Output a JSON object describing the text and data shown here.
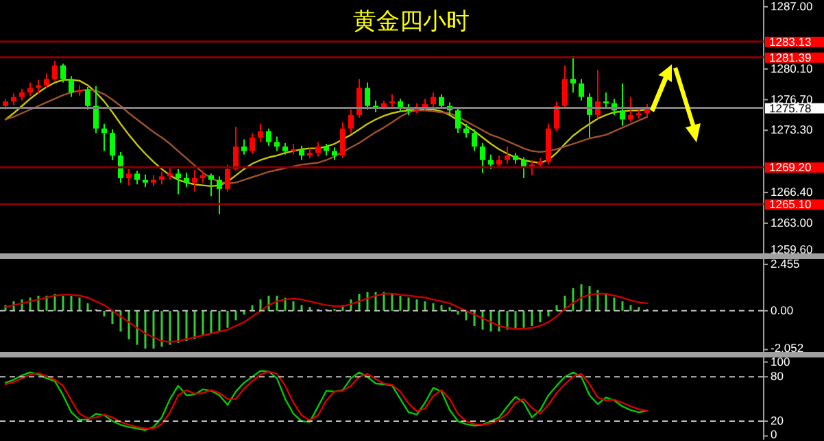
{
  "chart_data": [
    {
      "type": "candlestick",
      "title": "黄金四小时",
      "categories": [
        null,
        null,
        null,
        null,
        null,
        null,
        null,
        null,
        null,
        null,
        null,
        null,
        null,
        null,
        null,
        null,
        null,
        null,
        null,
        null,
        null,
        null,
        null,
        null,
        null,
        null,
        null,
        null,
        null,
        null,
        null,
        null,
        null,
        null,
        null,
        null,
        null,
        null,
        null,
        null,
        null,
        null,
        null,
        null,
        null,
        null,
        null,
        null,
        null,
        null,
        null,
        null,
        null,
        null,
        null,
        null,
        null,
        null,
        null,
        null,
        null,
        null,
        null,
        null,
        null,
        null,
        null,
        null,
        null,
        null,
        null,
        null,
        null,
        null,
        null,
        null,
        null,
        null,
        null
      ],
      "tick_labels": "y",
      "ylim": [
        1259.5,
        1287.75
      ],
      "yticks": [
        {
          "value": 1287,
          "label": "1287.00"
        },
        {
          "value": 1280.1,
          "label": "1280.10"
        },
        {
          "value": 1276.7,
          "label": "1276.70"
        },
        {
          "value": 1273.3,
          "label": "1273.30"
        },
        {
          "value": 1266.4,
          "label": "1266.40"
        },
        {
          "value": 1263,
          "label": "1263.00"
        },
        {
          "value": 1259.6,
          "label": "1259.60"
        }
      ],
      "ref_lines": [
        {
          "axis": "y",
          "value": 1283.13,
          "label": "1283.13",
          "color": "#8b0000"
        },
        {
          "axis": "y",
          "value": 1281.39,
          "label": "1281.39",
          "color": "#8b0000"
        },
        {
          "axis": "y",
          "value": 1275.78,
          "label": "1275.78",
          "color": "#808080"
        },
        {
          "axis": "y",
          "value": 1269.2,
          "label": "1269.20",
          "color": "#8b0000"
        },
        {
          "axis": "y",
          "value": 1265.1,
          "label": "1265.10",
          "color": "#8b0000"
        }
      ],
      "series": [
        {
          "type": "line",
          "color": "#c8c800",
          "values": [
            1274.5,
            1275.2,
            1276.0,
            1276.8,
            1277.5,
            1278.1,
            1278.6,
            1278.9,
            1278.9,
            1278.8,
            1278.3,
            1277.5,
            1276.5,
            1275.3,
            1274.0,
            1272.8,
            1271.7,
            1270.7,
            1269.8,
            1269.0,
            1268.3,
            1267.8,
            1267.5,
            1267.3,
            1267.2,
            1267.1,
            1267.2,
            1267.6,
            1268.3,
            1269.0,
            1269.6,
            1270.0,
            1270.3,
            1270.5,
            1270.8,
            1271.0,
            1271.2,
            1271.3,
            1271.3,
            1271.5,
            1271.8,
            1272.3,
            1272.8,
            1273.4,
            1274.0,
            1274.5,
            1274.9,
            1275.2,
            1275.4,
            1275.5,
            1275.6,
            1275.6,
            1275.6,
            1275.4,
            1275.0,
            1274.4,
            1273.8,
            1273.2,
            1272.5,
            1271.8,
            1271.2,
            1270.7,
            1270.3,
            1270.0,
            1269.8,
            1269.7,
            1270.0,
            1270.8,
            1271.8,
            1272.7,
            1273.4,
            1274.0,
            1274.6,
            1275.0,
            1275.3,
            1275.4,
            1275.5,
            1275.5,
            1275.6
          ]
        },
        {
          "type": "line",
          "color": "#a0522d",
          "values": [
            1274.5,
            1274.8,
            1275.2,
            1275.6,
            1276.0,
            1276.4,
            1276.8,
            1277.2,
            1277.5,
            1277.7,
            1277.8,
            1277.7,
            1277.3,
            1276.7,
            1276.0,
            1275.2,
            1274.5,
            1273.8,
            1273.1,
            1272.5,
            1271.8,
            1271.0,
            1270.2,
            1269.4,
            1268.6,
            1268.0,
            1267.6,
            1267.4,
            1267.5,
            1267.8,
            1268.1,
            1268.4,
            1268.7,
            1268.9,
            1269.1,
            1269.3,
            1269.5,
            1269.6,
            1269.7,
            1270.0,
            1270.4,
            1270.9,
            1271.4,
            1271.9,
            1272.5,
            1273.1,
            1273.6,
            1274.2,
            1274.8,
            1275.3,
            1275.5,
            1275.5,
            1275.4,
            1275.3,
            1275.2,
            1274.8,
            1274.3,
            1273.8,
            1273.3,
            1272.8,
            1272.5,
            1272.1,
            1271.7,
            1271.3,
            1271.0,
            1270.9,
            1271.0,
            1271.2,
            1271.5,
            1271.8,
            1272.1,
            1272.4,
            1272.6,
            1272.8,
            1273.2,
            1273.6,
            1274.0,
            1274.4,
            1274.8
          ]
        },
        {
          "colors": [
            "#ff0000",
            "#ff0000",
            "#ff0000",
            "#ff0000",
            "#ff0000",
            "#ff0000",
            "#ff0000",
            "#00ff00",
            "#00ff00",
            "#ff0000",
            "#00ff00",
            "#00ff00",
            "#00ff00",
            "#00ff00",
            "#00ff00",
            "#ff0000",
            "#00ff00",
            "#00ff00",
            "#ff0000",
            "#ff0000",
            "#ff0000",
            "#00ff00",
            "#00ff00",
            "#ff0000",
            "#ff0000",
            "#00ff00",
            "#00ff00",
            "#ff0000",
            "#ff0000",
            "#00ff00",
            "#ff0000",
            "#ff0000",
            "#00ff00",
            "#00ff00",
            "#00ff00",
            "#ff0000",
            "#00ff00",
            "#ff0000",
            "#ff0000",
            "#00ff00",
            "#00ff00",
            "#ff0000",
            "#ff0000",
            "#ff0000",
            "#00ff00",
            "#00ff00",
            "#ff0000",
            "#ff0000",
            "#00ff00",
            "#00ff00",
            "#ff0000",
            "#ff0000",
            "#ff0000",
            "#00ff00",
            "#00ff00",
            "#00ff00",
            "#00ff00",
            "#00ff00",
            "#00ff00",
            "#00ff00",
            "#ff0000",
            "#ff0000",
            "#00ff00",
            "#00ff00",
            "#ff0000",
            "#ff0000",
            "#ff0000",
            "#ff0000",
            "#ff0000",
            "#00ff00",
            "#00ff00",
            "#00ff00",
            "#ff0000",
            "#00ff00",
            "#00ff00",
            "#00ff00",
            "#ff0000",
            "#ff0000",
            "#ff0000"
          ],
          "ohlc": [
            [
              1276.0,
              1276.8,
              1275.6,
              1276.5
            ],
            [
              1276.5,
              1277.4,
              1276.1,
              1277.0
            ],
            [
              1277.0,
              1277.9,
              1276.6,
              1277.5
            ],
            [
              1277.5,
              1278.6,
              1277.1,
              1278.0
            ],
            [
              1278.0,
              1278.9,
              1277.4,
              1278.3
            ],
            [
              1278.3,
              1279.6,
              1278.0,
              1279.0
            ],
            [
              1279.0,
              1281.0,
              1278.8,
              1280.5
            ],
            [
              1280.5,
              1280.7,
              1278.6,
              1279.0
            ],
            [
              1279.0,
              1279.3,
              1277.0,
              1277.5
            ],
            [
              1277.5,
              1278.3,
              1277.1,
              1277.8
            ],
            [
              1277.8,
              1278.1,
              1275.6,
              1276.0
            ],
            [
              1276.0,
              1278.2,
              1273.0,
              1273.5
            ],
            [
              1273.5,
              1274.0,
              1271.0,
              1273.0
            ],
            [
              1273.0,
              1273.4,
              1270.0,
              1270.5
            ],
            [
              1270.5,
              1270.9,
              1267.5,
              1268.0
            ],
            [
              1268.0,
              1269.0,
              1267.2,
              1268.5
            ],
            [
              1268.5,
              1268.8,
              1267.3,
              1267.8
            ],
            [
              1267.8,
              1268.4,
              1267.0,
              1267.5
            ],
            [
              1267.5,
              1268.3,
              1267.1,
              1267.8
            ],
            [
              1267.8,
              1268.7,
              1267.3,
              1268.2
            ],
            [
              1268.2,
              1269.1,
              1267.8,
              1268.5
            ],
            [
              1268.5,
              1269.0,
              1266.2,
              1268.0
            ],
            [
              1268.0,
              1268.6,
              1267.0,
              1267.5
            ],
            [
              1267.5,
              1268.9,
              1266.5,
              1268.0
            ],
            [
              1268.0,
              1268.8,
              1267.5,
              1268.3
            ],
            [
              1268.3,
              1268.5,
              1266.0,
              1267.8
            ],
            [
              1267.8,
              1268.2,
              1264.0,
              1266.8
            ],
            [
              1266.8,
              1269.5,
              1266.5,
              1269.0
            ],
            [
              1269.0,
              1273.7,
              1268.8,
              1271.5
            ],
            [
              1271.5,
              1272.3,
              1270.6,
              1271.0
            ],
            [
              1271.0,
              1273.0,
              1270.7,
              1272.5
            ],
            [
              1272.5,
              1274.0,
              1272.0,
              1273.2
            ],
            [
              1273.2,
              1273.5,
              1271.6,
              1272.0
            ],
            [
              1272.0,
              1272.6,
              1271.0,
              1271.5
            ],
            [
              1271.5,
              1271.9,
              1270.6,
              1271.0
            ],
            [
              1271.0,
              1271.8,
              1270.6,
              1271.2
            ],
            [
              1271.2,
              1271.6,
              1270.0,
              1270.5
            ],
            [
              1270.5,
              1271.3,
              1270.2,
              1270.8
            ],
            [
              1270.8,
              1272.0,
              1270.4,
              1271.5
            ],
            [
              1271.5,
              1271.8,
              1270.5,
              1271.0
            ],
            [
              1271.0,
              1271.4,
              1270.0,
              1270.5
            ],
            [
              1270.5,
              1274.2,
              1270.2,
              1273.5
            ],
            [
              1273.5,
              1275.6,
              1273.0,
              1275.0
            ],
            [
              1275.0,
              1279.0,
              1274.7,
              1278.0
            ],
            [
              1278.0,
              1278.6,
              1275.6,
              1276.0
            ],
            [
              1276.0,
              1276.6,
              1275.3,
              1275.9
            ],
            [
              1275.9,
              1276.6,
              1275.6,
              1276.3
            ],
            [
              1276.3,
              1277.3,
              1275.9,
              1276.5
            ],
            [
              1276.5,
              1276.8,
              1275.4,
              1275.8
            ],
            [
              1275.8,
              1276.2,
              1275.0,
              1275.5
            ],
            [
              1275.5,
              1276.3,
              1275.2,
              1275.8
            ],
            [
              1275.8,
              1276.8,
              1275.5,
              1276.2
            ],
            [
              1276.2,
              1277.5,
              1275.8,
              1277.0
            ],
            [
              1277.0,
              1277.3,
              1275.7,
              1276.0
            ],
            [
              1276.0,
              1276.4,
              1275.0,
              1275.5
            ],
            [
              1275.5,
              1275.8,
              1273.0,
              1273.5
            ],
            [
              1273.5,
              1274.0,
              1272.5,
              1273.0
            ],
            [
              1273.0,
              1273.4,
              1271.0,
              1271.5
            ],
            [
              1271.5,
              1271.9,
              1268.6,
              1270.0
            ],
            [
              1270.0,
              1270.6,
              1269.0,
              1269.5
            ],
            [
              1269.5,
              1270.5,
              1269.2,
              1270.0
            ],
            [
              1270.0,
              1271.5,
              1269.6,
              1270.5
            ],
            [
              1270.5,
              1270.8,
              1269.6,
              1270.0
            ],
            [
              1270.0,
              1270.3,
              1268.0,
              1269.2
            ],
            [
              1269.2,
              1270.0,
              1268.3,
              1269.5
            ],
            [
              1269.5,
              1270.2,
              1269.2,
              1269.8
            ],
            [
              1269.8,
              1274.0,
              1269.5,
              1273.5
            ],
            [
              1273.5,
              1276.5,
              1273.2,
              1276.0
            ],
            [
              1276.0,
              1280.5,
              1275.8,
              1279.0
            ],
            [
              1279.0,
              1281.5,
              1277.5,
              1278.5
            ],
            [
              1278.5,
              1279.0,
              1276.6,
              1277.0
            ],
            [
              1277.0,
              1277.4,
              1272.5,
              1275.0
            ],
            [
              1275.0,
              1280.0,
              1274.6,
              1276.5
            ],
            [
              1276.5,
              1277.5,
              1275.8,
              1276.3
            ],
            [
              1276.3,
              1276.8,
              1275.0,
              1275.5
            ],
            [
              1275.5,
              1278.5,
              1273.8,
              1274.5
            ],
            [
              1274.5,
              1277.0,
              1274.2,
              1275.0
            ],
            [
              1275.0,
              1275.8,
              1274.6,
              1275.2
            ],
            [
              1275.2,
              1276.2,
              1274.9,
              1275.7
            ]
          ]
        }
      ]
    },
    {
      "type": "bar",
      "categories": [
        null,
        null,
        null,
        null,
        null,
        null,
        null,
        null,
        null,
        null,
        null,
        null,
        null,
        null,
        null,
        null,
        null,
        null,
        null,
        null,
        null,
        null,
        null,
        null,
        null,
        null,
        null,
        null,
        null,
        null,
        null,
        null,
        null,
        null,
        null,
        null,
        null,
        null,
        null,
        null,
        null,
        null,
        null,
        null,
        null,
        null,
        null,
        null,
        null,
        null,
        null,
        null,
        null,
        null,
        null,
        null,
        null,
        null,
        null,
        null,
        null,
        null,
        null,
        null,
        null,
        null,
        null,
        null,
        null,
        null,
        null,
        null,
        null,
        null,
        null,
        null,
        null,
        null,
        null
      ],
      "tick_labels": "y",
      "ylim": [
        -2.25,
        2.82
      ],
      "yticks": [
        {
          "value": 2.455,
          "label": "2.455"
        },
        {
          "value": 0,
          "label": "0.00"
        },
        {
          "value": -2.052,
          "label": "-2.052"
        }
      ],
      "ref_lines": [
        {
          "axis": "y",
          "value": 0,
          "color": "#c0c0c0",
          "line_style": "dashed"
        }
      ],
      "series": [
        {
          "color": "#32cd32",
          "values": [
            0.3,
            0.5,
            0.6,
            0.7,
            0.8,
            0.8,
            0.9,
            0.8,
            0.8,
            0.7,
            0.4,
            0.1,
            -0.3,
            -0.7,
            -1.1,
            -1.5,
            -1.8,
            -2.0,
            -2.0,
            -1.9,
            -1.8,
            -1.7,
            -1.6,
            -1.5,
            -1.3,
            -1.2,
            -1.1,
            -0.9,
            -0.5,
            -0.2,
            0.3,
            0.6,
            0.8,
            0.8,
            0.7,
            0.5,
            0.3,
            0.2,
            0.1,
            0.1,
            0.1,
            0.3,
            0.6,
            0.9,
            1.0,
            1.0,
            1.0,
            0.9,
            0.8,
            0.7,
            0.6,
            0.5,
            0.4,
            0.3,
            0.2,
            -0.2,
            -0.5,
            -0.8,
            -1.0,
            -1.1,
            -1.1,
            -1.0,
            -1.0,
            -0.9,
            -0.8,
            -0.6,
            -0.3,
            0.3,
            0.8,
            1.2,
            1.4,
            1.3,
            1.1,
            0.9,
            0.7,
            0.5,
            0.3,
            0.2,
            0.1
          ]
        },
        {
          "type": "line",
          "color": "#cc0000",
          "values": [
            0.2,
            0.3,
            0.4,
            0.5,
            0.6,
            0.7,
            0.8,
            0.85,
            0.85,
            0.8,
            0.7,
            0.5,
            0.3,
            0.0,
            -0.3,
            -0.6,
            -0.9,
            -1.2,
            -1.4,
            -1.6,
            -1.65,
            -1.6,
            -1.5,
            -1.4,
            -1.3,
            -1.2,
            -1.1,
            -1.0,
            -0.8,
            -0.6,
            -0.3,
            0.0,
            0.3,
            0.5,
            0.6,
            0.65,
            0.6,
            0.5,
            0.4,
            0.3,
            0.25,
            0.25,
            0.35,
            0.5,
            0.65,
            0.8,
            0.9,
            0.9,
            0.85,
            0.8,
            0.75,
            0.7,
            0.6,
            0.5,
            0.4,
            0.2,
            0.0,
            -0.2,
            -0.4,
            -0.6,
            -0.8,
            -0.9,
            -0.95,
            -0.95,
            -0.9,
            -0.8,
            -0.6,
            -0.3,
            0.1,
            0.4,
            0.7,
            0.85,
            0.9,
            0.9,
            0.8,
            0.7,
            0.55,
            0.45,
            0.4
          ]
        }
      ]
    },
    {
      "type": "line",
      "categories": [
        null,
        null,
        null,
        null,
        null,
        null,
        null,
        null,
        null,
        null,
        null,
        null,
        null,
        null,
        null,
        null,
        null,
        null,
        null,
        null,
        null,
        null,
        null,
        null,
        null,
        null,
        null,
        null,
        null,
        null,
        null,
        null,
        null,
        null,
        null,
        null,
        null,
        null,
        null,
        null,
        null,
        null,
        null,
        null,
        null,
        null,
        null,
        null,
        null,
        null,
        null,
        null,
        null,
        null,
        null,
        null,
        null,
        null,
        null,
        null,
        null,
        null,
        null,
        null,
        null,
        null,
        null,
        null,
        null,
        null,
        null,
        null,
        null,
        null,
        null,
        null,
        null,
        null,
        null
      ],
      "tick_labels": "y",
      "ylim": [
        -5,
        108
      ],
      "yticks": [
        100,
        80,
        20,
        0
      ],
      "ref_lines": [
        {
          "axis": "y",
          "value": 80,
          "color": "#c0c0c0",
          "line_style": "dashed"
        },
        {
          "axis": "y",
          "value": 20,
          "color": "#c0c0c0",
          "line_style": "dashed"
        }
      ],
      "series": [
        {
          "color": "#00cc00",
          "values": [
            72,
            76,
            82,
            86,
            83,
            78,
            74,
            55,
            32,
            22,
            22,
            30,
            28,
            20,
            15,
            12,
            10,
            8,
            12,
            25,
            50,
            68,
            55,
            56,
            63,
            61,
            55,
            42,
            60,
            72,
            80,
            88,
            87,
            78,
            50,
            30,
            20,
            19,
            40,
            61,
            60,
            62,
            78,
            86,
            80,
            71,
            70,
            68,
            50,
            32,
            29,
            45,
            65,
            60,
            35,
            20,
            16,
            14,
            15,
            20,
            25,
            40,
            53,
            45,
            25,
            35,
            55,
            68,
            80,
            86,
            80,
            55,
            43,
            52,
            48,
            40,
            35,
            32,
            34
          ]
        },
        {
          "color": "#dd0000",
          "values": [
            70,
            73,
            78,
            83,
            85,
            81,
            76,
            68,
            48,
            30,
            24,
            25,
            29,
            25,
            19,
            15,
            12,
            10,
            10,
            16,
            32,
            55,
            62,
            57,
            58,
            62,
            58,
            50,
            50,
            64,
            74,
            83,
            87,
            84,
            68,
            45,
            28,
            21,
            28,
            48,
            60,
            61,
            68,
            80,
            84,
            77,
            71,
            69,
            60,
            44,
            33,
            37,
            54,
            62,
            50,
            30,
            20,
            16,
            15,
            17,
            22,
            30,
            45,
            50,
            38,
            30,
            42,
            58,
            70,
            80,
            84,
            70,
            52,
            48,
            49,
            45,
            40,
            36,
            34
          ]
        }
      ]
    }
  ]
}
